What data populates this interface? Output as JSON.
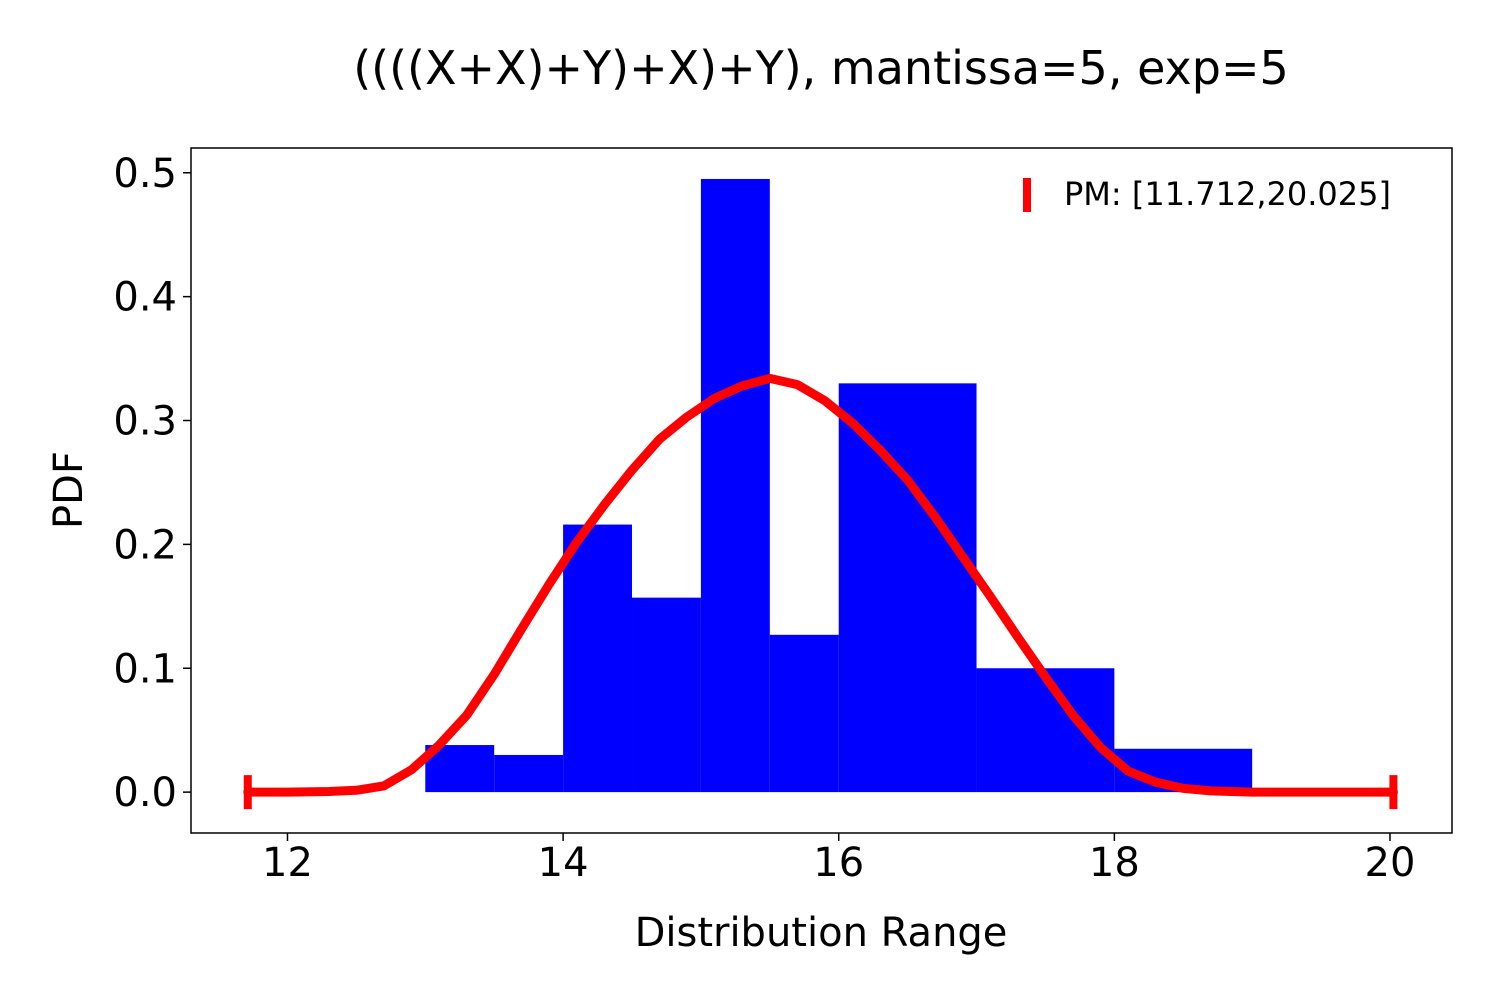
{
  "chart_data": {
    "type": "bar",
    "title": "((((X+X)+Y)+X)+Y), mantissa=5, exp=5",
    "xlabel": "Distribution Range",
    "ylabel": "PDF",
    "xlim": [
      11.3,
      20.45
    ],
    "ylim": [
      -0.033,
      0.52
    ],
    "xticks": [
      12,
      14,
      16,
      18,
      20
    ],
    "xtick_labels": [
      "12",
      "14",
      "16",
      "18",
      "20"
    ],
    "yticks": [
      0.0,
      0.1,
      0.2,
      0.3,
      0.4,
      0.5
    ],
    "ytick_labels": [
      "0.0",
      "0.1",
      "0.2",
      "0.3",
      "0.4",
      "0.5"
    ],
    "grid": false,
    "legend_position": "top-right",
    "bar_color": "#0000ff",
    "line_color": "#ff0000",
    "bins": [
      {
        "x0": 13.0,
        "x1": 13.5,
        "value": 0.038
      },
      {
        "x0": 13.5,
        "x1": 14.0,
        "value": 0.03
      },
      {
        "x0": 14.0,
        "x1": 14.5,
        "value": 0.216
      },
      {
        "x0": 14.5,
        "x1": 15.0,
        "value": 0.157
      },
      {
        "x0": 15.0,
        "x1": 15.5,
        "value": 0.495
      },
      {
        "x0": 15.5,
        "x1": 16.0,
        "value": 0.127
      },
      {
        "x0": 16.0,
        "x1": 17.0,
        "value": 0.33
      },
      {
        "x0": 17.0,
        "x1": 18.0,
        "value": 0.1
      },
      {
        "x0": 18.0,
        "x1": 19.0,
        "value": 0.035
      }
    ],
    "series": [
      {
        "name": "PM: [11.712,20.025]",
        "type": "line",
        "interval": [
          11.712,
          20.025
        ],
        "x": [
          11.712,
          12.0,
          12.3,
          12.5,
          12.7,
          12.9,
          13.1,
          13.3,
          13.5,
          13.7,
          13.9,
          14.1,
          14.3,
          14.5,
          14.7,
          14.9,
          15.1,
          15.3,
          15.5,
          15.7,
          15.9,
          16.1,
          16.3,
          16.5,
          16.7,
          16.9,
          17.1,
          17.3,
          17.5,
          17.7,
          17.9,
          18.1,
          18.3,
          18.5,
          18.7,
          19.0,
          19.5,
          20.025
        ],
        "y": [
          0.0,
          0.0,
          0.0005,
          0.0015,
          0.005,
          0.018,
          0.038,
          0.062,
          0.095,
          0.132,
          0.168,
          0.202,
          0.232,
          0.26,
          0.285,
          0.303,
          0.318,
          0.328,
          0.334,
          0.329,
          0.316,
          0.298,
          0.276,
          0.252,
          0.222,
          0.19,
          0.158,
          0.125,
          0.093,
          0.062,
          0.036,
          0.017,
          0.008,
          0.003,
          0.001,
          0.0,
          0.0,
          0.0
        ]
      }
    ]
  }
}
